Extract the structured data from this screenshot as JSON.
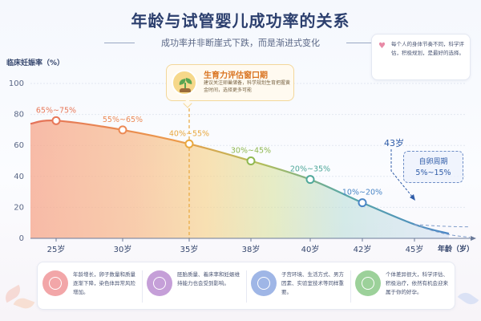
{
  "title": "年龄与试管婴儿成功率的关系",
  "subtitle": "成功率并非断崖式下跌，而是渐进式变化",
  "tip": {
    "icon": "heart-icon",
    "text": "每个人的身体节奏不同，科学评估，积极规划，是最好的选择。"
  },
  "callout": {
    "icon": "seedling-icon",
    "title": "生育力评估窗口期",
    "text": "建议关注卵巢储备，科学规划生育把握黄金时间，选择更多可能"
  },
  "info_box": {
    "age_label": "43岁",
    "line1": "自卵周期",
    "line2": "5%~15%"
  },
  "chart_data": {
    "type": "area",
    "ylabel": "临床妊娠率（%）",
    "xlabel": "年龄（岁）",
    "x_ticks": [
      "25岁",
      "30岁",
      "35岁",
      "38岁",
      "40岁",
      "42岁",
      "45岁"
    ],
    "ylim": [
      0,
      100
    ],
    "y_ticks": [
      0,
      20,
      40,
      60,
      80,
      100
    ],
    "grid": true,
    "series": [
      {
        "values": [
          {
            "x": "22",
            "y": 74
          },
          {
            "x": "25",
            "y": 76
          },
          {
            "x": "30",
            "y": 70
          },
          {
            "x": "35",
            "y": 61
          },
          {
            "x": "38",
            "y": 50
          },
          {
            "x": "40",
            "y": 38
          },
          {
            "x": "42",
            "y": 23
          },
          {
            "x": "45",
            "y": 9
          },
          {
            "x": "47",
            "y": 3
          }
        ]
      }
    ],
    "markers": [
      {
        "age": "25岁",
        "y": 76,
        "label": "65%~75%",
        "color": "#e8795a"
      },
      {
        "age": "30岁",
        "y": 70,
        "label": "55%~65%",
        "color": "#ec8a55"
      },
      {
        "age": "35岁",
        "y": 61,
        "label": "40%~55%",
        "color": "#e9a83e"
      },
      {
        "age": "38岁",
        "y": 50,
        "label": "30%~45%",
        "color": "#8fb850"
      },
      {
        "age": "40岁",
        "y": 38,
        "label": "20%~35%",
        "color": "#4fa89a"
      },
      {
        "age": "42岁",
        "y": 23,
        "label": "10%~20%",
        "color": "#4a86c6"
      }
    ],
    "annotations": [
      "35岁 vertical dashed marker",
      "43岁 dashed pointer",
      "dashed lower tail beyond 45岁"
    ]
  },
  "bottom_cards": [
    {
      "icon": "egg-icon",
      "color": "#f2a6a8",
      "text": "年龄增长，卵子数量和质量逐渐下降，染色体异常风险增加。"
    },
    {
      "icon": "embryo-icon",
      "color": "#c59fd8",
      "text": "胚胎质量、着床率和妊娠维持能力也会受到影响。"
    },
    {
      "icon": "uterus-icon",
      "color": "#9fb6e6",
      "text": "子宫环境、生活方式、男方因素、实验室技术等同样重要。"
    },
    {
      "icon": "heart-hands-icon",
      "color": "#9cd19a",
      "text": "个体差异很大，科学评估、积极治疗，依然有机会迎来属于你的好孕。"
    }
  ]
}
